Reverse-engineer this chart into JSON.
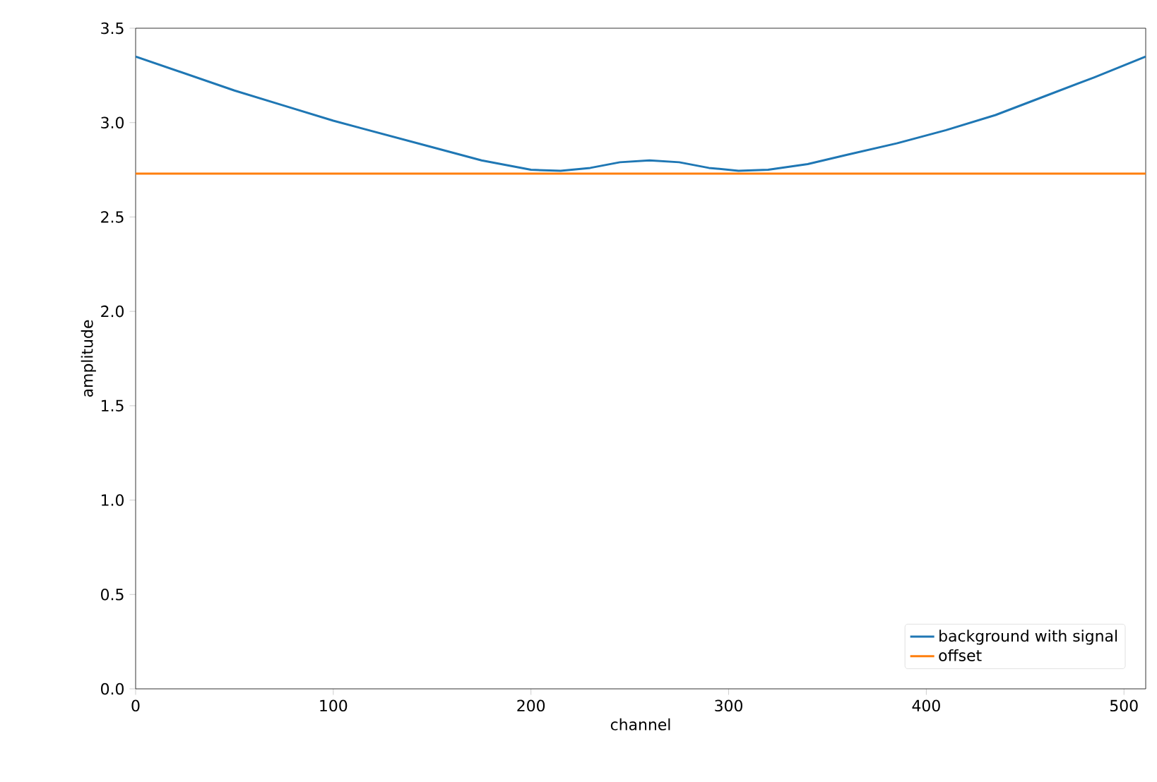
{
  "chart_data": {
    "type": "line",
    "xlabel": "channel",
    "ylabel": "amplitude",
    "xlim": [
      0,
      511
    ],
    "ylim": [
      0,
      3.5
    ],
    "xticks": [
      0,
      100,
      200,
      300,
      400,
      500
    ],
    "yticks": [
      {
        "value": 0,
        "label": "0.0"
      },
      0.5,
      {
        "value": 1,
        "label": "1.0"
      },
      1.5,
      {
        "value": 2,
        "label": "2.0"
      },
      2.5,
      {
        "value": 3,
        "label": "3.0"
      },
      3.5
    ],
    "legend": "bottom right",
    "grid": false,
    "series": [
      {
        "name": "background with signal",
        "color": "#1f77b4",
        "x": [
          0,
          25,
          50,
          75,
          100,
          125,
          150,
          175,
          200,
          215,
          230,
          245,
          260,
          275,
          290,
          305,
          320,
          340,
          360,
          385,
          410,
          435,
          460,
          485,
          511
        ],
        "values": [
          3.35,
          3.26,
          3.17,
          3.09,
          3.01,
          2.94,
          2.87,
          2.8,
          2.75,
          2.745,
          2.76,
          2.79,
          2.8,
          2.79,
          2.76,
          2.745,
          2.75,
          2.78,
          2.83,
          2.89,
          2.96,
          3.04,
          3.14,
          3.24,
          3.35
        ]
      },
      {
        "name": "offset",
        "color": "#ff7f0e",
        "x": [
          0,
          511
        ],
        "values": [
          2.73,
          2.73
        ]
      }
    ]
  }
}
